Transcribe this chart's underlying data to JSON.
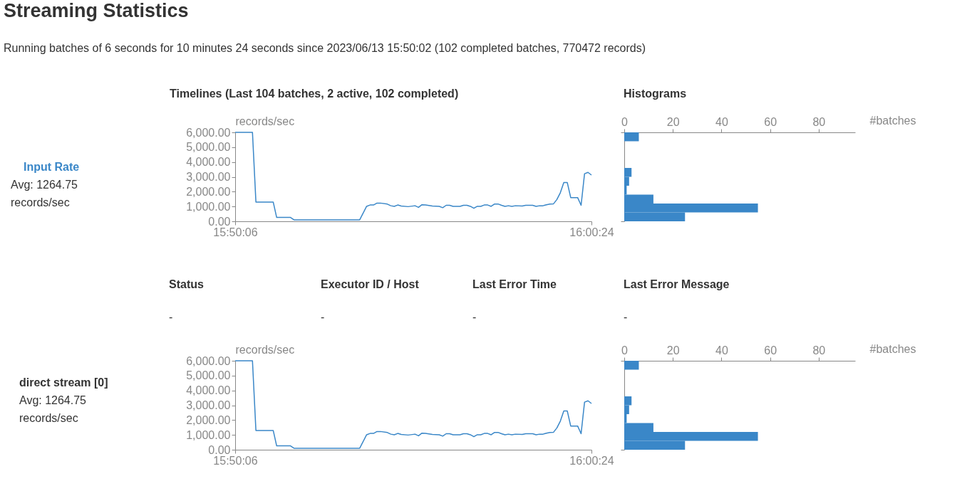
{
  "chart_data": [
    {
      "type": "line",
      "title": "Streaming Statistics",
      "subtitle": "Running batches of 6 seconds for 10 minutes 24 seconds since 2023/06/13 15:50:02 (102 completed batches, 770472 records)",
      "ylabel": "records/sec",
      "annotations": [
        "Timelines (Last 104 batches, 2 active, 102 completed)",
        "Input Rate",
        "Avg: 1264.75",
        "records/sec"
      ],
      "x": [
        "2023-06-13T15:50:06",
        "2023-06-13T15:50:36",
        "2023-06-13T15:50:42",
        "2023-06-13T15:51:12",
        "2023-06-13T15:51:18",
        "2023-06-13T15:51:42",
        "2023-06-13T15:51:48",
        "2023-06-13T15:53:42",
        "2023-06-13T15:53:54",
        "2023-06-13T15:54:00",
        "2023-06-13T15:54:06",
        "2023-06-13T15:54:12",
        "2023-06-13T15:54:18",
        "2023-06-13T15:54:30",
        "2023-06-13T15:54:36",
        "2023-06-13T15:54:42",
        "2023-06-13T15:54:48",
        "2023-06-13T15:54:54",
        "2023-06-13T15:55:06",
        "2023-06-13T15:55:18",
        "2023-06-13T15:55:24",
        "2023-06-13T15:55:30",
        "2023-06-13T15:55:36",
        "2023-06-13T15:55:48",
        "2023-06-13T15:56:00",
        "2023-06-13T15:56:06",
        "2023-06-13T15:56:12",
        "2023-06-13T15:56:18",
        "2023-06-13T15:56:24",
        "2023-06-13T15:56:36",
        "2023-06-13T15:56:42",
        "2023-06-13T15:56:48",
        "2023-06-13T15:56:54",
        "2023-06-13T15:57:00",
        "2023-06-13T15:57:06",
        "2023-06-13T15:57:12",
        "2023-06-13T15:57:18",
        "2023-06-13T15:57:24",
        "2023-06-13T15:57:30",
        "2023-06-13T15:57:36",
        "2023-06-13T15:57:42",
        "2023-06-13T15:57:48",
        "2023-06-13T15:57:54",
        "2023-06-13T15:58:00",
        "2023-06-13T15:58:06",
        "2023-06-13T15:58:12",
        "2023-06-13T15:58:24",
        "2023-06-13T15:58:30",
        "2023-06-13T15:58:42",
        "2023-06-13T15:58:48",
        "2023-06-13T15:58:54",
        "2023-06-13T15:59:00",
        "2023-06-13T15:59:06",
        "2023-06-13T15:59:12",
        "2023-06-13T15:59:18",
        "2023-06-13T15:59:24",
        "2023-06-13T15:59:30",
        "2023-06-13T15:59:36",
        "2023-06-13T15:59:42",
        "2023-06-13T15:59:48",
        "2023-06-13T16:00:00",
        "2023-06-13T16:00:06",
        "2023-06-13T16:00:12",
        "2023-06-13T16:00:18",
        "2023-06-13T16:00:24"
      ],
      "series": [
        {
          "color": "#3a87c8",
          "values": [
            6000,
            6000,
            1300,
            1300,
            260,
            260,
            100,
            100,
            1010,
            1100,
            1100,
            1230,
            1230,
            1160,
            1050,
            1010,
            1100,
            1030,
            990,
            1050,
            940,
            1120,
            1100,
            1030,
            1010,
            920,
            1080,
            1080,
            1010,
            1010,
            1080,
            1080,
            1010,
            880,
            1010,
            1010,
            1100,
            1100,
            1010,
            1170,
            1170,
            1080,
            1010,
            1050,
            1010,
            1050,
            1030,
            1080,
            1080,
            1010,
            1050,
            1050,
            1120,
            1160,
            1170,
            1470,
            1930,
            2620,
            2620,
            1600,
            1600,
            1080,
            3210,
            3300,
            3120
          ]
        }
      ],
      "xlim": [
        "2023-06-13T15:50:06",
        "2023-06-13T16:00:24"
      ],
      "xticks": [
        {
          "value": "2023-06-13T15:50:06",
          "label": "15:50:06"
        },
        {
          "value": "2023-06-13T16:00:24",
          "label": "16:00:24"
        }
      ],
      "ylim": [
        0,
        6000
      ],
      "yticks": [
        {
          "value": 0,
          "label": "0.00"
        },
        {
          "value": 1000,
          "label": "1,000.00"
        },
        {
          "value": 2000,
          "label": "2,000.00"
        },
        {
          "value": 3000,
          "label": "3,000.00"
        },
        {
          "value": 4000,
          "label": "4,000.00"
        },
        {
          "value": 5000,
          "label": "5,000.00"
        },
        {
          "value": 6000,
          "label": "6,000.00"
        }
      ],
      "grid": false
    },
    {
      "type": "histogram",
      "orientation": "horizontal",
      "annotations": [
        "Histograms"
      ],
      "xlabel": "#batches",
      "bins": [
        0,
        600,
        1200,
        1800,
        2400,
        3000,
        3600,
        4200,
        4800,
        5400,
        6000
      ],
      "values": [
        25,
        55,
        12,
        1,
        2,
        3,
        0,
        0,
        0,
        6
      ],
      "color": "#3a87c8",
      "xlim": [
        0,
        95
      ],
      "xticks": [
        0,
        20,
        40,
        60,
        80
      ],
      "ylim": [
        0,
        6000
      ],
      "tick_labels": "x",
      "grid": false
    },
    {
      "type": "line",
      "ylabel": "records/sec",
      "annotations": [
        "Status",
        "Executor ID / Host",
        "Last Error Time",
        "Last Error Message",
        "-",
        "-",
        "-",
        "-",
        "direct stream [0]",
        "Avg: 1264.75",
        "records/sec"
      ],
      "x": [
        "2023-06-13T15:50:06",
        "2023-06-13T15:50:36",
        "2023-06-13T15:50:42",
        "2023-06-13T15:51:12",
        "2023-06-13T15:51:18",
        "2023-06-13T15:51:42",
        "2023-06-13T15:51:48",
        "2023-06-13T15:53:42",
        "2023-06-13T15:53:54",
        "2023-06-13T15:54:00",
        "2023-06-13T15:54:06",
        "2023-06-13T15:54:12",
        "2023-06-13T15:54:18",
        "2023-06-13T15:54:30",
        "2023-06-13T15:54:36",
        "2023-06-13T15:54:42",
        "2023-06-13T15:54:48",
        "2023-06-13T15:54:54",
        "2023-06-13T15:55:06",
        "2023-06-13T15:55:18",
        "2023-06-13T15:55:24",
        "2023-06-13T15:55:30",
        "2023-06-13T15:55:36",
        "2023-06-13T15:55:48",
        "2023-06-13T15:56:00",
        "2023-06-13T15:56:06",
        "2023-06-13T15:56:12",
        "2023-06-13T15:56:18",
        "2023-06-13T15:56:24",
        "2023-06-13T15:56:36",
        "2023-06-13T15:56:42",
        "2023-06-13T15:56:48",
        "2023-06-13T15:56:54",
        "2023-06-13T15:57:00",
        "2023-06-13T15:57:06",
        "2023-06-13T15:57:12",
        "2023-06-13T15:57:18",
        "2023-06-13T15:57:24",
        "2023-06-13T15:57:30",
        "2023-06-13T15:57:36",
        "2023-06-13T15:57:42",
        "2023-06-13T15:57:48",
        "2023-06-13T15:57:54",
        "2023-06-13T15:58:00",
        "2023-06-13T15:58:06",
        "2023-06-13T15:58:12",
        "2023-06-13T15:58:24",
        "2023-06-13T15:58:30",
        "2023-06-13T15:58:42",
        "2023-06-13T15:58:48",
        "2023-06-13T15:58:54",
        "2023-06-13T15:59:00",
        "2023-06-13T15:59:06",
        "2023-06-13T15:59:12",
        "2023-06-13T15:59:18",
        "2023-06-13T15:59:24",
        "2023-06-13T15:59:30",
        "2023-06-13T15:59:36",
        "2023-06-13T15:59:42",
        "2023-06-13T15:59:48",
        "2023-06-13T16:00:00",
        "2023-06-13T16:00:06",
        "2023-06-13T16:00:12",
        "2023-06-13T16:00:18",
        "2023-06-13T16:00:24"
      ],
      "series": [
        {
          "color": "#3a87c8",
          "values": [
            6000,
            6000,
            1300,
            1300,
            260,
            260,
            100,
            100,
            1010,
            1100,
            1100,
            1230,
            1230,
            1160,
            1050,
            1010,
            1100,
            1030,
            990,
            1050,
            940,
            1120,
            1100,
            1030,
            1010,
            920,
            1080,
            1080,
            1010,
            1010,
            1080,
            1080,
            1010,
            880,
            1010,
            1010,
            1100,
            1100,
            1010,
            1170,
            1170,
            1080,
            1010,
            1050,
            1010,
            1050,
            1030,
            1080,
            1080,
            1010,
            1050,
            1050,
            1120,
            1160,
            1170,
            1470,
            1930,
            2620,
            2620,
            1600,
            1600,
            1080,
            3210,
            3300,
            3120
          ]
        }
      ],
      "xlim": [
        "2023-06-13T15:50:06",
        "2023-06-13T16:00:24"
      ],
      "xticks": [
        {
          "value": "2023-06-13T15:50:06",
          "label": "15:50:06"
        },
        {
          "value": "2023-06-13T16:00:24",
          "label": "16:00:24"
        }
      ],
      "ylim": [
        0,
        6000
      ],
      "yticks": [
        {
          "value": 0,
          "label": "0.00"
        },
        {
          "value": 1000,
          "label": "1,000.00"
        },
        {
          "value": 2000,
          "label": "2,000.00"
        },
        {
          "value": 3000,
          "label": "3,000.00"
        },
        {
          "value": 4000,
          "label": "4,000.00"
        },
        {
          "value": 5000,
          "label": "5,000.00"
        },
        {
          "value": 6000,
          "label": "6,000.00"
        }
      ],
      "grid": false
    },
    {
      "type": "histogram",
      "orientation": "horizontal",
      "xlabel": "#batches",
      "bins": [
        0,
        600,
        1200,
        1800,
        2400,
        3000,
        3600,
        4200,
        4800,
        5400,
        6000
      ],
      "values": [
        25,
        55,
        12,
        1,
        2,
        3,
        0,
        0,
        0,
        6
      ],
      "color": "#3a87c8",
      "xlim": [
        0,
        95
      ],
      "xticks": [
        0,
        20,
        40,
        60,
        80
      ],
      "ylim": [
        0,
        6000
      ],
      "tick_labels": "x",
      "grid": false
    }
  ]
}
